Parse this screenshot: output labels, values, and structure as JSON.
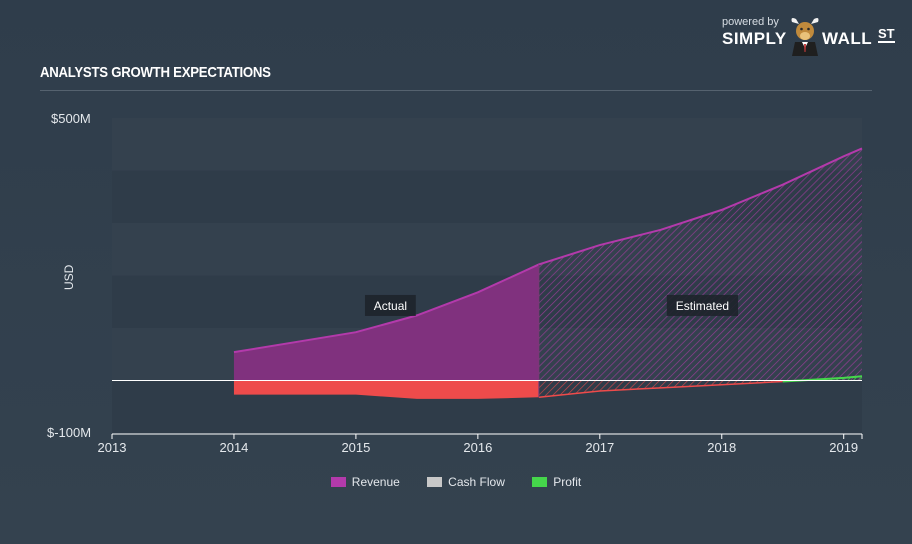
{
  "header": {
    "title": "ANALYSTS GROWTH EXPECTATIONS"
  },
  "brand": {
    "powered_by": "powered by",
    "simply": "SIMPLY",
    "wall": "WALL",
    "st": "ST"
  },
  "colors": {
    "revenue": "#8e2f87",
    "revenue_line": "#b33aab",
    "cash_flow": "#c8c8c8",
    "profit": "#45d64b",
    "negative": "#ee4b4b",
    "baseline": "#ffffff"
  },
  "chart_data": {
    "type": "area",
    "title": "ANALYSTS GROWTH EXPECTATIONS",
    "ylabel": "USD",
    "ylim": [
      -100,
      500
    ],
    "ytick_labels": [
      "$500M",
      "$-100M"
    ],
    "xlim": [
      2013,
      2019.15
    ],
    "xticks": [
      2013,
      2014,
      2015,
      2016,
      2017,
      2018,
      2019
    ],
    "annotations": [
      "Actual",
      "Estimated"
    ],
    "actual_estimated_split": 2016.5,
    "legend_position": "bottom",
    "series": [
      {
        "name": "Revenue",
        "x": [
          2014.0,
          2014.5,
          2015.0,
          2015.5,
          2016.0,
          2016.5,
          2017.0,
          2017.5,
          2018.0,
          2018.5,
          2019.0,
          2019.15
        ],
        "values": [
          54,
          73,
          92,
          124,
          168,
          221,
          258,
          287,
          325,
          373,
          427,
          442
        ]
      },
      {
        "name": "Cash Flow",
        "x": [
          2014.0,
          2014.5,
          2015.0,
          2015.5,
          2016.0,
          2016.5,
          2017.0,
          2017.5,
          2018.0,
          2018.5,
          2019.0,
          2019.15
        ],
        "values": [
          -27,
          -27,
          -27,
          -35,
          -35,
          -32,
          -20,
          -14,
          -8,
          -2,
          5,
          8
        ]
      },
      {
        "name": "Profit",
        "x": [
          2014.0,
          2014.5,
          2015.0,
          2015.5,
          2016.0,
          2016.5,
          2017.0,
          2017.5,
          2018.0,
          2018.5,
          2019.0,
          2019.15
        ],
        "values": [
          -27,
          -27,
          -27,
          -35,
          -35,
          -32,
          -20,
          -14,
          -8,
          -2,
          5,
          8
        ]
      }
    ]
  }
}
